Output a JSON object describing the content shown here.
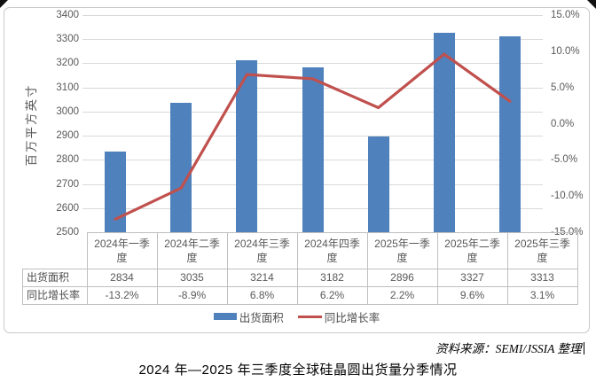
{
  "chart_data": {
    "type": "bar",
    "combo": "bar+line",
    "categories": [
      "2024年一季度",
      "2024年二季度",
      "2024年三季度",
      "2024年四季度",
      "2025年一季度",
      "2025年二季度",
      "2025年三季度"
    ],
    "series": [
      {
        "name": "出货面积",
        "type": "bar",
        "axis": "left",
        "values": [
          2834,
          3035,
          3214,
          3182,
          2896,
          3327,
          3313
        ],
        "labels": [
          "2834",
          "3035",
          "3214",
          "3182",
          "2896",
          "3327",
          "3313"
        ]
      },
      {
        "name": "同比增长率",
        "type": "line",
        "axis": "right",
        "values": [
          -13.2,
          -8.9,
          6.8,
          6.2,
          2.2,
          9.6,
          3.1
        ],
        "labels": [
          "-13.2%",
          "-8.9%",
          "6.8%",
          "6.2%",
          "2.2%",
          "9.6%",
          "3.1%"
        ]
      }
    ],
    "left_axis": {
      "title": "百万平方英寸",
      "min": 2500,
      "max": 3400,
      "step": 100,
      "ticks": [
        "3400",
        "3300",
        "3200",
        "3100",
        "3000",
        "2900",
        "2800",
        "2700",
        "2600",
        "2500"
      ]
    },
    "right_axis": {
      "min": -15,
      "max": 15,
      "step": 5,
      "ticks": [
        "15.0%",
        "10.0%",
        "5.0%",
        "0.0%",
        "-5.0%",
        "-10.0%",
        "-15.0%"
      ]
    },
    "grid": true,
    "legend_position": "bottom",
    "title": "2024 年—2025 年三季度全球硅晶圆出货量分季情况"
  },
  "table": {
    "row_headers": [
      "出货面积",
      "同比增长率"
    ],
    "rows": [
      [
        "2834",
        "3035",
        "3214",
        "3182",
        "2896",
        "3327",
        "3313"
      ],
      [
        "-13.2%",
        "-8.9%",
        "6.8%",
        "6.2%",
        "2.2%",
        "9.6%",
        "3.1%"
      ]
    ]
  },
  "legend": {
    "items": [
      {
        "label": "出货面积",
        "type": "bar"
      },
      {
        "label": "同比增长率",
        "type": "line"
      }
    ]
  },
  "source_note": "资料来源：SEMI/JSSIA 整理",
  "caption": "2024 年—2025 年三季度全球硅晶圆出货量分季情况",
  "colors": {
    "bar": "#4f81bd",
    "line": "#c0504d",
    "grid": "#d9d9d9",
    "table_border": "#bfbfbf",
    "axis_text": "#595959",
    "frame_border": "#c9c9c9"
  }
}
